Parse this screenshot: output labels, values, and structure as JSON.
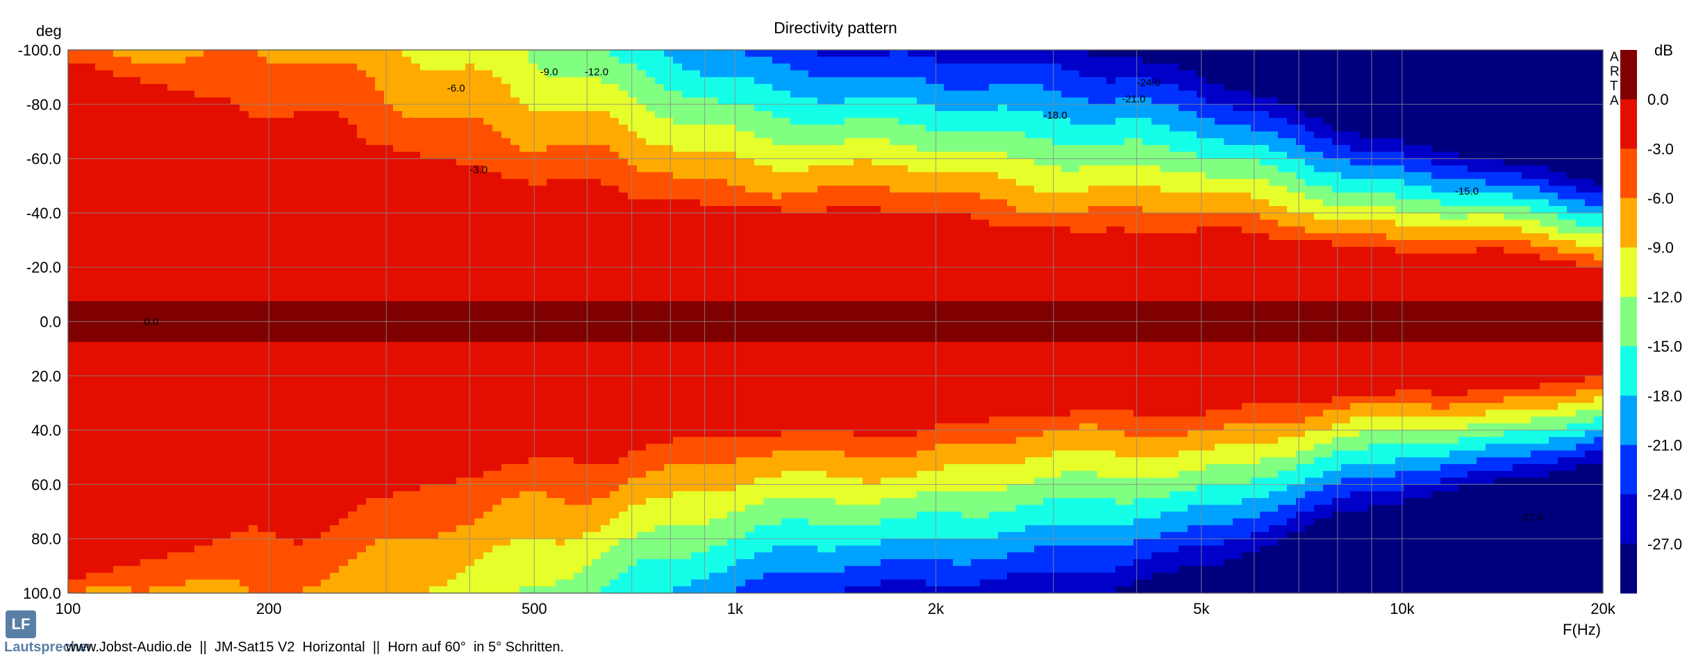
{
  "chart_data": {
    "type": "heatmap",
    "title": "Directivity pattern",
    "xlabel": "F(Hz)",
    "ylabel": "deg",
    "x_scale": "log",
    "xlim": [
      100,
      20000
    ],
    "ylim": [
      -100,
      100
    ],
    "x_ticks": [
      {
        "value": 100,
        "label": "100"
      },
      {
        "value": 200,
        "label": "200"
      },
      {
        "value": 500,
        "label": "500"
      },
      {
        "value": 1000,
        "label": "1k"
      },
      {
        "value": 2000,
        "label": "2k"
      },
      {
        "value": 5000,
        "label": "5k"
      },
      {
        "value": 10000,
        "label": "10k"
      },
      {
        "value": 20000,
        "label": "20k"
      }
    ],
    "y_ticks": [
      {
        "value": -100,
        "label": "-100.0"
      },
      {
        "value": -80,
        "label": "-80.0"
      },
      {
        "value": -60,
        "label": "-60.0"
      },
      {
        "value": -40,
        "label": "-40.0"
      },
      {
        "value": -20,
        "label": "-20.0"
      },
      {
        "value": 0,
        "label": "0.0"
      },
      {
        "value": 20,
        "label": "20.0"
      },
      {
        "value": 40,
        "label": "40.0"
      },
      {
        "value": 60,
        "label": "60.0"
      },
      {
        "value": 80,
        "label": "80.0"
      },
      {
        "value": 100,
        "label": "100.0"
      }
    ],
    "grid": true,
    "colorbar": {
      "unit": "dB",
      "levels": [
        0,
        -3,
        -6,
        -9,
        -12,
        -15,
        -18,
        -21,
        -24,
        -27
      ],
      "labels": [
        "0.0",
        "-3.0",
        "-6.0",
        "-9.0",
        "-12.0",
        "-15.0",
        "-18.0",
        "-21.0",
        "-24.0",
        "-27.0"
      ],
      "colors": [
        "#800000",
        "#e30e00",
        "#ff5000",
        "#ffaa00",
        "#e6ff2a",
        "#80ff80",
        "#15ffe8",
        "#00a2ff",
        "#0032ff",
        "#0000c8",
        "#00007f"
      ]
    },
    "contour_labels": [
      {
        "text": "0.0",
        "freq": 130,
        "deg": 0
      },
      {
        "text": "-3.0",
        "freq": 400,
        "deg": -56
      },
      {
        "text": "-6.0",
        "freq": 370,
        "deg": -86
      },
      {
        "text": "-9.0",
        "freq": 510,
        "deg": -92
      },
      {
        "text": "-12.0",
        "freq": 595,
        "deg": -92
      },
      {
        "text": "-15.0",
        "freq": 12000,
        "deg": -48
      },
      {
        "text": "-18.0",
        "freq": 2900,
        "deg": -76
      },
      {
        "text": "-21.0",
        "freq": 3800,
        "deg": -82
      },
      {
        "text": "-24.0",
        "freq": 4000,
        "deg": -88
      },
      {
        "text": "-27.0",
        "freq": 15000,
        "deg": 72
      }
    ],
    "beamwidth_half_angle_deg": {
      "freq": [
        100,
        150,
        200,
        300,
        400,
        500,
        700,
        1000,
        1500,
        2000,
        3000,
        5000,
        7000,
        10000,
        15000,
        20000
      ],
      "minus3dB": [
        95,
        85,
        74,
        64,
        58,
        50,
        45,
        42,
        40,
        38,
        34,
        32,
        30,
        26,
        24,
        20
      ],
      "minus6dB": [
        100,
        100,
        100,
        90,
        78,
        65,
        56,
        52,
        48,
        46,
        43,
        39,
        36,
        31,
        28,
        24
      ]
    },
    "arta_mark": [
      "A",
      "R",
      "T",
      "A"
    ]
  },
  "footer": {
    "logo": "LF",
    "site": "Lautsprecher",
    "text": "www.Jobst-Audio.de  ||  JM-Sat15 V2  Horizontal  ||  Horn auf 60°  in 5° Schritten."
  }
}
